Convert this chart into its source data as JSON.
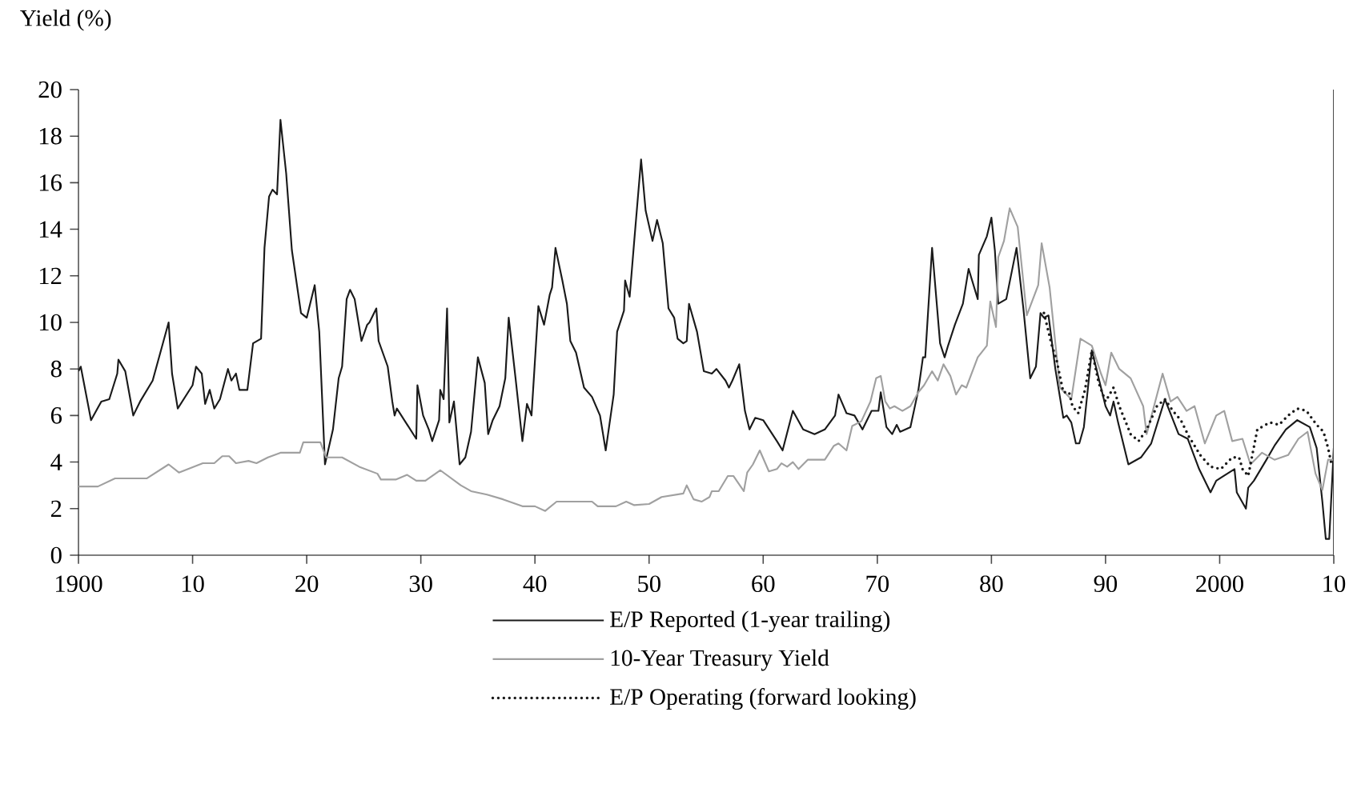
{
  "chart_data": {
    "type": "line",
    "ylabel": "Yield (%)",
    "xlim": [
      1900,
      2010
    ],
    "ylim": [
      0,
      20
    ],
    "xticks": [
      1900,
      {
        "value": 1910,
        "label": "10"
      },
      {
        "value": 1920,
        "label": "20"
      },
      {
        "value": 1930,
        "label": "30"
      },
      {
        "value": 1940,
        "label": "40"
      },
      {
        "value": 1950,
        "label": "50"
      },
      {
        "value": 1960,
        "label": "60"
      },
      {
        "value": 1970,
        "label": "70"
      },
      {
        "value": 1980,
        "label": "80"
      },
      {
        "value": 1990,
        "label": "90"
      },
      2000,
      {
        "value": 2010,
        "label": "10"
      }
    ],
    "yticks": [
      0,
      2,
      4,
      6,
      8,
      10,
      12,
      14,
      16,
      18,
      20
    ],
    "legend": "bottom",
    "marker": "none",
    "grid": false,
    "series": [
      {
        "name": "E/P Reported (1-year trailing)",
        "color": "#1a1a1a",
        "line_style": "solid",
        "x": [
          1900,
          1900.2,
          1901.1,
          1902,
          1902.7,
          1903.4,
          1903.5,
          1904.1,
          1904.8,
          1905.4,
          1906.5,
          1907.9,
          1908.2,
          1908.7,
          1910,
          1910.3,
          1910.8,
          1911.1,
          1911.5,
          1911.9,
          1912.4,
          1913.1,
          1913.4,
          1913.8,
          1914.1,
          1914.8,
          1915.3,
          1916,
          1916.3,
          1916.7,
          1917,
          1917.4,
          1917.7,
          1918.2,
          1918.7,
          1919.5,
          1920,
          1920.7,
          1921.1,
          1921.6,
          1922.3,
          1922.8,
          1923.1,
          1923.5,
          1923.8,
          1924.2,
          1924.8,
          1925.3,
          1925.5,
          1926.1,
          1926.3,
          1927.1,
          1927.5,
          1927.7,
          1927.9,
          1929.6,
          1929.7,
          1930.2,
          1930.7,
          1931,
          1931.6,
          1931.7,
          1932,
          1932.3,
          1932.5,
          1932.9,
          1933.4,
          1933.9,
          1934.4,
          1935,
          1935.6,
          1935.9,
          1936.3,
          1936.9,
          1937.4,
          1937.7,
          1938.3,
          1938.9,
          1939.3,
          1939.7,
          1940.3,
          1940.8,
          1941.3,
          1941.5,
          1941.8,
          1942.4,
          1942.8,
          1943.1,
          1943.6,
          1944.3,
          1945,
          1945.7,
          1946.2,
          1946.9,
          1947.2,
          1947.8,
          1947.9,
          1948.3,
          1948.7,
          1949.3,
          1949.7,
          1950.3,
          1950.7,
          1951.2,
          1951.7,
          1952.2,
          1952.5,
          1953,
          1953.3,
          1953.5,
          1954.2,
          1954.8,
          1955.5,
          1955.9,
          1956.7,
          1957,
          1957.3,
          1957.9,
          1958.4,
          1958.8,
          1959.3,
          1960,
          1960.4,
          1961.2,
          1961.7,
          1962.6,
          1963.5,
          1964.5,
          1965.4,
          1966.3,
          1966.6,
          1967.3,
          1968,
          1968.7,
          1969.5,
          1970.1,
          1970.3,
          1970.8,
          1971.3,
          1971.7,
          1972,
          1972.9,
          1973.6,
          1974,
          1974.2,
          1974.8,
          1975.5,
          1975.9,
          1976.2,
          1976.8,
          1977.5,
          1978,
          1978.8,
          1978.9,
          1979.6,
          1980,
          1980.3,
          1980.6,
          1981.3,
          1982.2,
          1982.8,
          1983.4,
          1983.9,
          1984.3,
          1984.6,
          1985,
          1985.6,
          1986.3,
          1986.6,
          1987,
          1987.4,
          1987.7,
          1988.1,
          1988.8,
          1989.3,
          1990,
          1990.4,
          1990.7,
          1991.1,
          1992,
          1993.1,
          1994,
          1995.2,
          1996.4,
          1997.2,
          1998.2,
          1999.2,
          1999.7,
          2001.3,
          2001.5,
          2002.3,
          2002.5,
          2003,
          2004.1,
          2004.8,
          2005.8,
          2006.8,
          2007.9,
          2008.5,
          2009,
          2009.3,
          2009.6,
          2010
        ],
        "values": [
          7.9,
          8.1,
          5.8,
          6.6,
          6.7,
          7.8,
          8.4,
          7.9,
          6.0,
          6.6,
          7.5,
          10.0,
          7.8,
          6.3,
          7.3,
          8.1,
          7.8,
          6.5,
          7.1,
          6.3,
          6.7,
          8.0,
          7.5,
          7.8,
          7.1,
          7.1,
          9.1,
          9.3,
          13.2,
          15.4,
          15.7,
          15.5,
          18.7,
          16.4,
          13.1,
          10.4,
          10.2,
          11.6,
          9.6,
          3.9,
          5.4,
          7.6,
          8.1,
          11.0,
          11.4,
          11.0,
          9.2,
          9.9,
          10.0,
          10.6,
          9.2,
          8.1,
          6.6,
          6.0,
          6.3,
          5.0,
          7.3,
          6.0,
          5.4,
          4.9,
          5.8,
          7.1,
          6.7,
          10.6,
          5.7,
          6.6,
          3.9,
          4.2,
          5.3,
          8.5,
          7.4,
          5.2,
          5.8,
          6.4,
          7.6,
          10.2,
          7.6,
          4.9,
          6.5,
          6.0,
          10.7,
          9.9,
          11.2,
          11.5,
          13.2,
          11.8,
          10.8,
          9.2,
          8.7,
          7.2,
          6.8,
          6.0,
          4.5,
          6.9,
          9.6,
          10.5,
          11.8,
          11.1,
          13.5,
          17.0,
          14.8,
          13.5,
          14.4,
          13.4,
          10.6,
          10.2,
          9.3,
          9.1,
          9.2,
          10.8,
          9.6,
          7.9,
          7.8,
          8.0,
          7.5,
          7.2,
          7.5,
          8.2,
          6.2,
          5.4,
          5.9,
          5.8,
          5.5,
          4.9,
          4.5,
          6.2,
          5.4,
          5.2,
          5.4,
          6.0,
          6.9,
          6.1,
          6.0,
          5.4,
          6.2,
          6.2,
          7.0,
          5.5,
          5.2,
          5.6,
          5.3,
          5.5,
          7.1,
          8.5,
          8.5,
          13.2,
          9.1,
          8.5,
          9.0,
          9.9,
          10.8,
          12.3,
          11.0,
          12.9,
          13.7,
          14.5,
          13.1,
          10.8,
          11.0,
          13.2,
          10.6,
          7.6,
          8.1,
          10.4,
          10.2,
          10.3,
          8.0,
          5.9,
          6.0,
          5.7,
          4.8,
          4.8,
          5.5,
          8.8,
          7.8,
          6.4,
          6.0,
          6.6,
          5.7,
          3.9,
          4.2,
          4.8,
          6.7,
          5.2,
          5.0,
          3.7,
          2.7,
          3.2,
          3.7,
          2.7,
          2.0,
          2.9,
          3.2,
          4.1,
          4.7,
          5.4,
          5.8,
          5.5,
          4.6,
          2.3,
          0.7,
          0.7,
          4.6
        ]
      },
      {
        "name": "10-Year Treasury Yield",
        "color": "#a0a0a0",
        "line_style": "solid",
        "x": [
          1900,
          1901.7,
          1903.2,
          1906,
          1907.9,
          1908.8,
          1910.9,
          1911.9,
          1912.6,
          1913.2,
          1913.8,
          1914.9,
          1915.6,
          1916.6,
          1917.7,
          1919.4,
          1919.7,
          1921.2,
          1921.7,
          1923.1,
          1924.6,
          1926.2,
          1926.5,
          1927.8,
          1928.8,
          1929.6,
          1930.4,
          1931.7,
          1933.5,
          1934.4,
          1935.8,
          1937.2,
          1938.9,
          1940,
          1940.9,
          1941.9,
          1945,
          1945.5,
          1947.1,
          1948,
          1948.7,
          1950,
          1951.1,
          1953,
          1953.3,
          1953.9,
          1954.6,
          1955.3,
          1955.5,
          1956.1,
          1956.9,
          1957.4,
          1958.3,
          1958.6,
          1959.1,
          1959.7,
          1960.5,
          1961.2,
          1961.6,
          1962.1,
          1962.6,
          1963.1,
          1963.9,
          1965.4,
          1966.2,
          1966.6,
          1967.3,
          1967.8,
          1968.6,
          1969.4,
          1969.9,
          1970.3,
          1970.7,
          1971.1,
          1971.5,
          1972.2,
          1972.9,
          1973.6,
          1974.1,
          1974.8,
          1975.3,
          1975.8,
          1976.4,
          1976.9,
          1977.4,
          1977.8,
          1978.8,
          1979.6,
          1979.9,
          1980.4,
          1980.6,
          1981.1,
          1981.6,
          1982.3,
          1983.1,
          1984.1,
          1984.4,
          1985.1,
          1986,
          1987,
          1987.8,
          1988.8,
          1989.6,
          1990,
          1990.5,
          1991.2,
          1992.2,
          1993.3,
          1993.6,
          1995,
          1995.7,
          1996.3,
          1997.1,
          1997.8,
          1998.7,
          1999.7,
          2000.4,
          2001.1,
          2002,
          2002.7,
          2003.7,
          2004.8,
          2006,
          2006.9,
          2007.7,
          2008.4,
          2009,
          2009.5,
          2010
        ],
        "values": [
          2.95,
          2.95,
          3.3,
          3.3,
          3.9,
          3.55,
          3.95,
          3.95,
          4.25,
          4.25,
          3.95,
          4.05,
          3.95,
          4.2,
          4.4,
          4.4,
          4.85,
          4.85,
          4.2,
          4.2,
          3.8,
          3.5,
          3.25,
          3.25,
          3.45,
          3.2,
          3.2,
          3.65,
          3.0,
          2.75,
          2.6,
          2.4,
          2.1,
          2.1,
          1.9,
          2.3,
          2.3,
          2.1,
          2.1,
          2.3,
          2.15,
          2.2,
          2.5,
          2.65,
          3.0,
          2.4,
          2.3,
          2.5,
          2.75,
          2.75,
          3.4,
          3.4,
          2.75,
          3.55,
          3.9,
          4.5,
          3.6,
          3.7,
          3.95,
          3.8,
          4.0,
          3.7,
          4.1,
          4.1,
          4.7,
          4.8,
          4.5,
          5.55,
          5.75,
          6.6,
          7.6,
          7.7,
          6.6,
          6.3,
          6.4,
          6.2,
          6.4,
          7.0,
          7.3,
          7.9,
          7.5,
          8.2,
          7.7,
          6.9,
          7.3,
          7.2,
          8.5,
          9.0,
          10.9,
          9.8,
          12.8,
          13.5,
          14.9,
          14.1,
          10.3,
          11.6,
          13.4,
          11.5,
          7.2,
          6.7,
          9.3,
          9.0,
          7.8,
          7.3,
          8.7,
          8.0,
          7.6,
          6.4,
          5.2,
          7.8,
          6.6,
          6.8,
          6.2,
          6.4,
          4.8,
          6.0,
          6.2,
          4.9,
          5.0,
          3.9,
          4.4,
          4.1,
          4.3,
          5.0,
          5.3,
          3.5,
          2.8,
          4.1,
          4.1
        ]
      },
      {
        "name": "E/P Operating (forward looking)",
        "color": "#1a1a1a",
        "line_style": "dotted",
        "x": [
          1984.6,
          1985.3,
          1985.7,
          1986.3,
          1986.8,
          1987.1,
          1987.6,
          1988.2,
          1988.8,
          1989.4,
          1990,
          1990.7,
          1991.2,
          1992.2,
          1992.9,
          1993.6,
          1994.5,
          1995.2,
          1995.9,
          1996.6,
          1997.3,
          1998.3,
          1999.2,
          2000.1,
          2001.1,
          2001.7,
          2002,
          2002.5,
          2003.3,
          2004.4,
          2005.2,
          2006,
          2006.8,
          2007.6,
          2008.5,
          2009.1,
          2009.5,
          2009.8
        ],
        "values": [
          10.4,
          9.0,
          8.4,
          7.0,
          7.0,
          6.4,
          6.1,
          7.1,
          8.8,
          7.4,
          6.6,
          7.2,
          6.4,
          5.2,
          4.9,
          5.4,
          6.4,
          6.7,
          6.2,
          5.8,
          5.1,
          4.3,
          3.8,
          3.7,
          4.2,
          4.2,
          3.7,
          3.4,
          5.4,
          5.7,
          5.6,
          6.0,
          6.3,
          6.2,
          5.6,
          5.3,
          4.6,
          3.9
        ]
      }
    ]
  }
}
